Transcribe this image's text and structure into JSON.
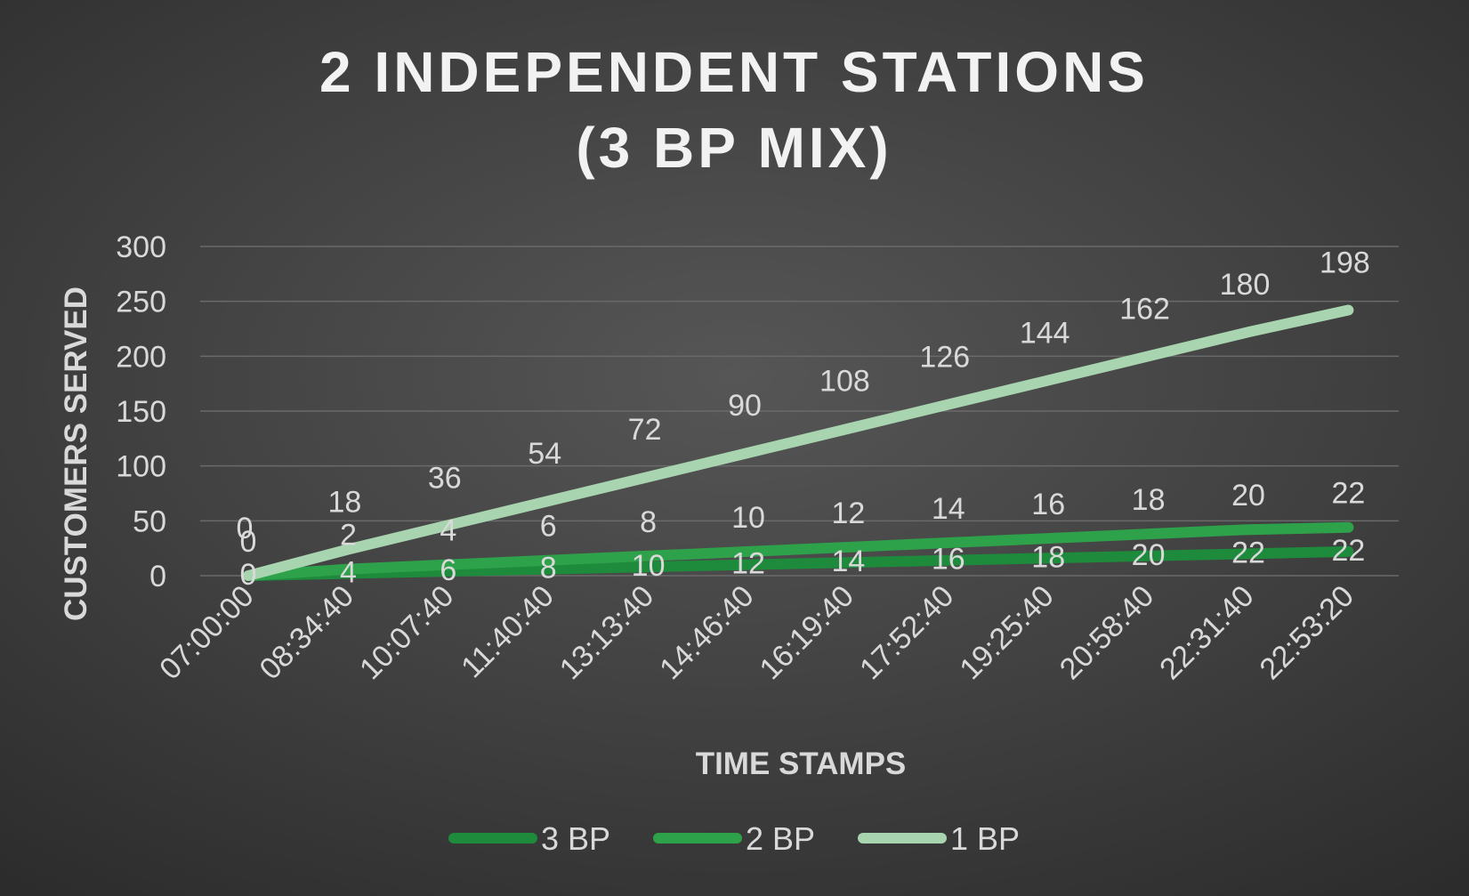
{
  "chart_data": {
    "type": "line",
    "title_line1": "2 INDEPENDENT STATIONS",
    "title_line2": "(3 BP MIX)",
    "xlabel": "TIME STAMPS",
    "ylabel": "CUSTOMERS SERVED",
    "ylim": [
      0,
      300
    ],
    "yticks": [
      0,
      50,
      100,
      150,
      200,
      250,
      300
    ],
    "grid": true,
    "legend_position": "bottom",
    "categories": [
      "07:00:00",
      "08:34:40",
      "10:07:40",
      "11:40:40",
      "13:13:40",
      "14:46:40",
      "16:19:40",
      "17:52:40",
      "19:25:40",
      "20:58:40",
      "22:31:40",
      "22:53:20"
    ],
    "series": [
      {
        "name": "3 BP",
        "color": "#1e8a3c",
        "values": [
          0,
          2,
          4,
          6,
          8,
          10,
          12,
          14,
          16,
          18,
          20,
          22
        ],
        "plotted": [
          0,
          2,
          4,
          6,
          8,
          10,
          12,
          14,
          16,
          18,
          20,
          22
        ]
      },
      {
        "name": "2 BP",
        "color": "#2ea24a",
        "values": [
          0,
          4,
          6,
          8,
          10,
          12,
          14,
          16,
          18,
          20,
          22,
          22
        ],
        "plotted": [
          0,
          6,
          10,
          14,
          18,
          22,
          26,
          30,
          34,
          38,
          42,
          44
        ]
      },
      {
        "name": "1 BP",
        "color": "#a8d5b0",
        "values": [
          0,
          18,
          36,
          54,
          72,
          90,
          108,
          126,
          144,
          162,
          180,
          198
        ],
        "plotted": [
          0,
          24,
          46,
          68,
          90,
          112,
          134,
          156,
          178,
          200,
          222,
          242
        ]
      }
    ]
  }
}
